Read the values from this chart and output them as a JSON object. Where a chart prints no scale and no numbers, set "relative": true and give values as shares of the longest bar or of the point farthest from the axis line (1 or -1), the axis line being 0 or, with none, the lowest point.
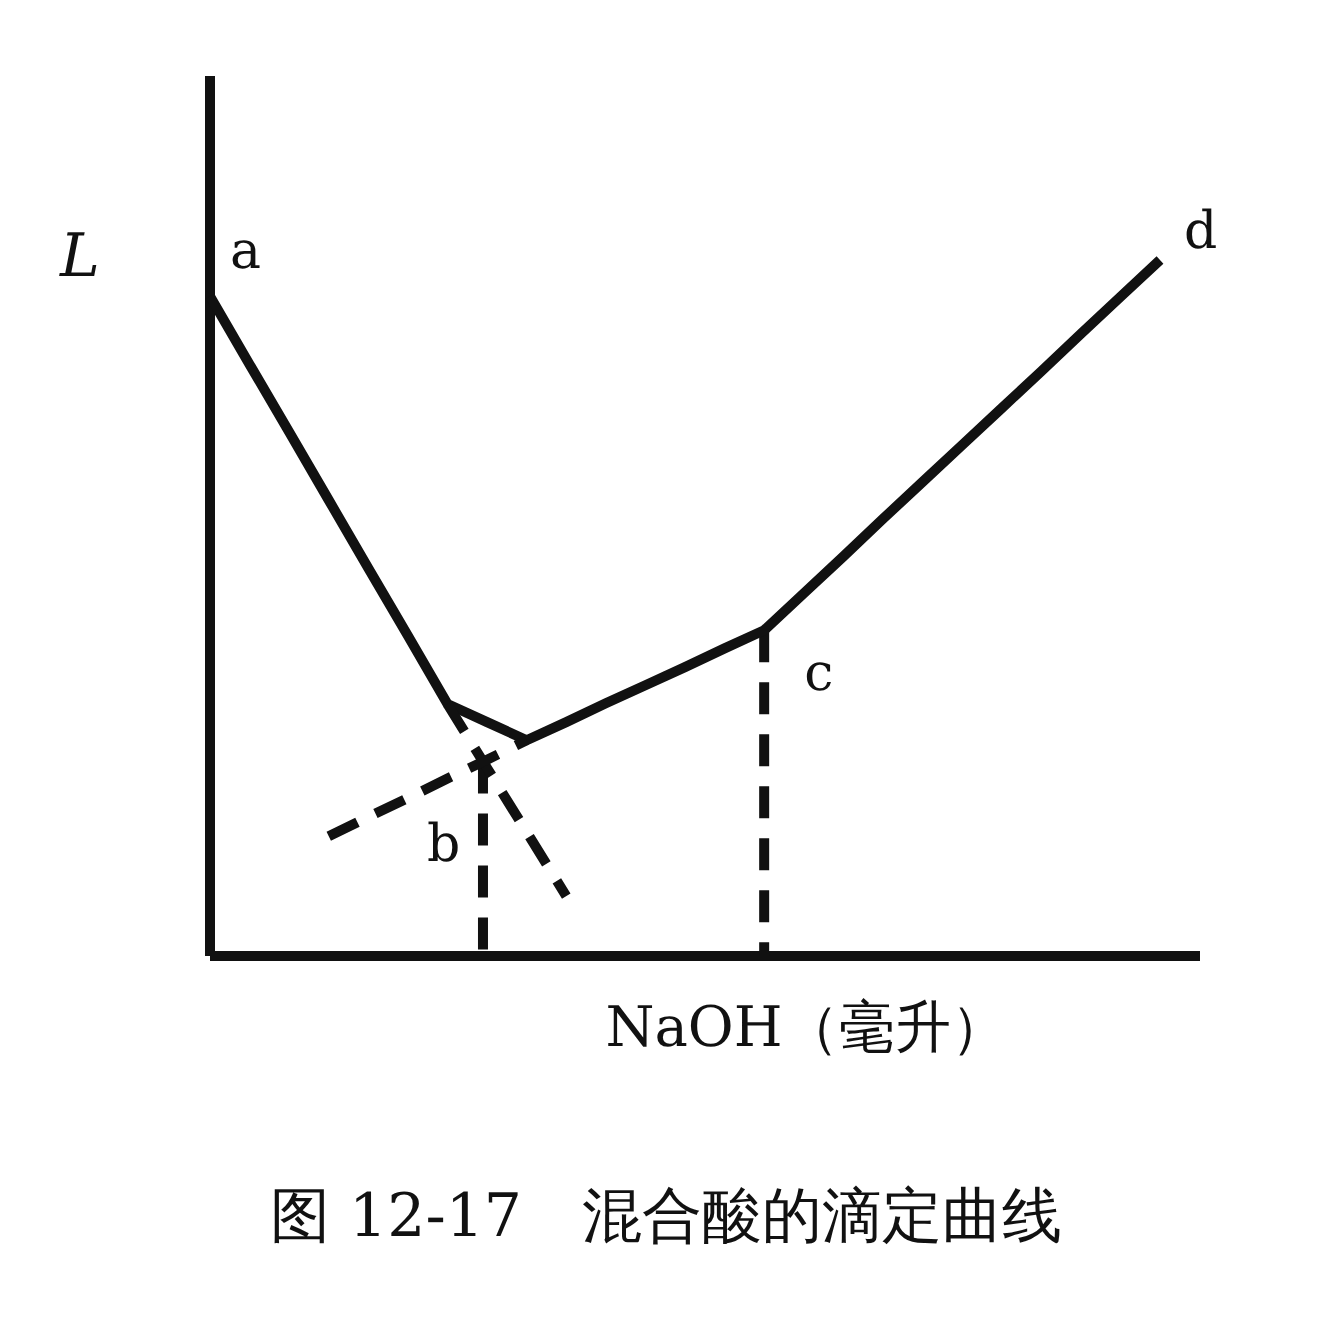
{
  "chart_data": {
    "type": "line",
    "title": "图 12-17　混合酸的滴定曲线",
    "xlabel": "NaOH（毫升）",
    "ylabel": "L",
    "relative": true,
    "line_style": "solid",
    "marker": "none",
    "grid": false,
    "categories": [
      null,
      null,
      null,
      null,
      null,
      null,
      null,
      null,
      null,
      null,
      null,
      null,
      null,
      null,
      null,
      null,
      null,
      null,
      null,
      null,
      null,
      null,
      null,
      null,
      null
    ],
    "series": [
      {
        "color": "#111111",
        "values": [
          0.948,
          0.85,
          0.753,
          0.655,
          0.557,
          0.46,
          0.362,
          0.336,
          0.31,
          0.336,
          0.363,
          0.389,
          0.415,
          0.442,
          0.468,
          0.521,
          0.574,
          0.628,
          0.681,
          0.734,
          0.787,
          0.84,
          0.894,
          0.947,
          1.0
        ]
      },
      {
        "color": "#111111",
        "line_style": "dashed",
        "values": [
          null,
          null,
          null,
          null,
          null,
          null,
          0.362,
          0.27,
          0.178,
          0.086,
          null,
          null,
          null,
          null,
          null,
          null,
          null,
          null,
          null,
          null,
          null,
          null,
          null,
          null,
          null
        ]
      },
      {
        "color": "#111111",
        "line_style": "dashed",
        "values": [
          null,
          null,
          null,
          0.172,
          0.2,
          0.227,
          0.255,
          0.282,
          0.31,
          null,
          null,
          null,
          null,
          null,
          null,
          null,
          null,
          null,
          null,
          null,
          null,
          null,
          null,
          null,
          null
        ]
      }
    ],
    "annotations": [
      "a",
      "b",
      "c",
      "d"
    ]
  }
}
